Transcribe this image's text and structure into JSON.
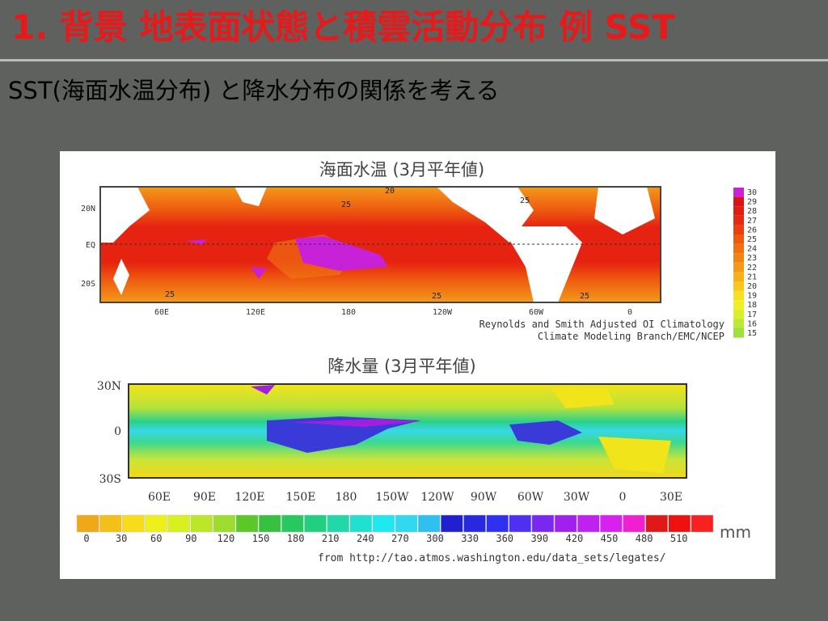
{
  "title": "1. 背景  地表面状態と積雲活動分布 例 SST",
  "subtitle": "SST(海面水温分布) と降水分布の関係を考える",
  "sst_map": {
    "title": "海面水温 (3月平年値)",
    "lat_labels": [
      "20N",
      "EQ",
      "20S"
    ],
    "lon_labels": [
      "60E",
      "120E",
      "180",
      "120W",
      "60W",
      "0"
    ],
    "contour_labels": [
      "20",
      "25",
      "25",
      "25",
      "25",
      "25"
    ],
    "colorbar_labels": [
      "30",
      "29",
      "28",
      "27",
      "26",
      "25",
      "24",
      "23",
      "22",
      "21",
      "20",
      "19",
      "18",
      "17",
      "16",
      "15"
    ],
    "credit": [
      "Reynolds and Smith Adjusted OI Climatology",
      "Climate Modeling Branch/EMC/NCEP"
    ]
  },
  "precip_map": {
    "title": "降水量 (3月平年値)",
    "lat_labels": [
      "30N",
      "0",
      "30S"
    ],
    "lon_labels": [
      "60E",
      "90E",
      "120E",
      "150E",
      "180",
      "150W",
      "120W",
      "90W",
      "60W",
      "30W",
      "0",
      "30E"
    ],
    "colorbar_labels": [
      "0",
      "30",
      "60",
      "90",
      "120",
      "150",
      "180",
      "210",
      "240",
      "270",
      "300",
      "330",
      "360",
      "390",
      "420",
      "450",
      "480",
      "510"
    ],
    "unit": "mm",
    "credit": "from http://tao.atmos.washington.edu/data_sets/legates/"
  }
}
